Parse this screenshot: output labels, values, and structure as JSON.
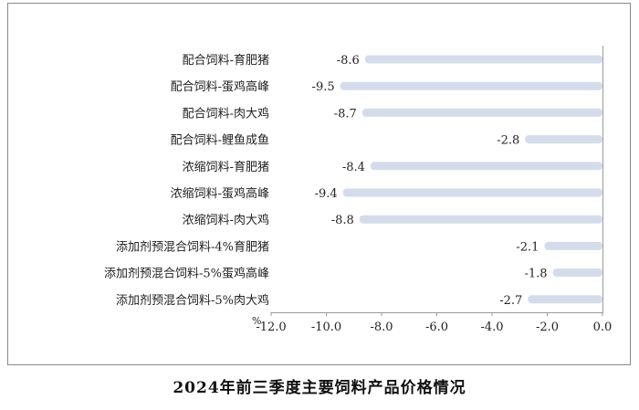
{
  "chart_data": {
    "type": "bar",
    "orientation": "horizontal",
    "title": "2024年前三季度主要饲料产品价格情况",
    "unit_label": "%",
    "categories": [
      "配合饲料-育肥猪",
      "配合饲料-蛋鸡高峰",
      "配合饲料-肉大鸡",
      "配合饲料-鲤鱼成鱼",
      "浓缩饲料-育肥猪",
      "浓缩饲料-蛋鸡高峰",
      "浓缩饲料-肉大鸡",
      "添加剂预混合饲料-4%育肥猪",
      "添加剂预混合饲料-5%蛋鸡高峰",
      "添加剂预混合饲料-5%肉大鸡"
    ],
    "values": [
      -8.6,
      -9.5,
      -8.7,
      -2.8,
      -8.4,
      -9.4,
      -8.8,
      -2.1,
      -1.8,
      -2.7
    ],
    "value_labels": [
      "-8.6",
      "-9.5",
      "-8.7",
      "-2.8",
      "-8.4",
      "-9.4",
      "-8.8",
      "-2.1",
      "-1.8",
      "-2.7"
    ],
    "xlim": [
      -12.0,
      0.0
    ],
    "xticks": [
      -12.0,
      -10.0,
      -8.0,
      -6.0,
      -4.0,
      -2.0,
      0.0
    ],
    "xtick_labels": [
      "-12.0",
      "-10.0",
      "-8.0",
      "-6.0",
      "-4.0",
      "-2.0",
      "0.0"
    ],
    "grid": false,
    "legend": "none",
    "colors": {
      "bar": "#d4dcec",
      "axis": "#9a9a9a",
      "frame": "#8a8a8a"
    }
  }
}
